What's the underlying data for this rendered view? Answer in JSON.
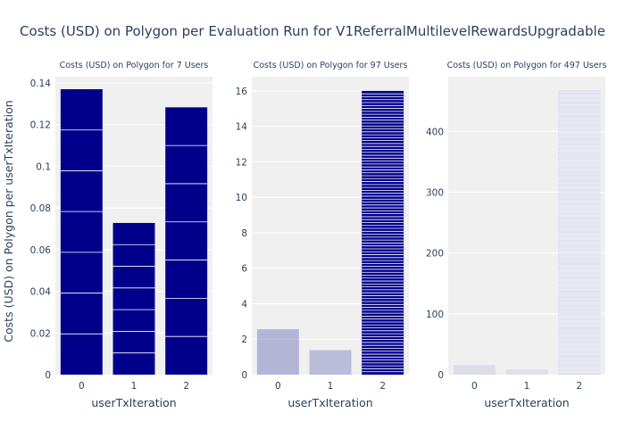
{
  "title": "Costs (USD) on Polygon per Evaluation Run for V1ReferralMultilevelRewardsUpgradable",
  "ylabel": "Costs (USD) on Polygon per userTxIteration",
  "chart_data": [
    {
      "type": "bar",
      "title": "Costs (USD) on Polygon for 7 Users",
      "xlabel": "userTxIteration",
      "categories": [
        "0",
        "1",
        "2"
      ],
      "values": [
        0.137,
        0.0728,
        0.1283
      ],
      "segments": 7,
      "color": "#00008b",
      "ylim": [
        0,
        0.143
      ],
      "yticks": [
        0,
        0.02,
        0.04,
        0.06,
        0.08,
        0.1,
        0.12,
        0.14
      ],
      "ytick_labels": [
        "0",
        "0.02",
        "0.04",
        "0.06",
        "0.08",
        "0.1",
        "0.12",
        "0.14"
      ]
    },
    {
      "type": "bar",
      "title": "Costs (USD) on Polygon for 97 Users",
      "xlabel": "userTxIteration",
      "categories": [
        "0",
        "1",
        "2"
      ],
      "values": [
        2.56,
        1.38,
        16.0
      ],
      "segments": 97,
      "color": "#00008b",
      "opacity": [
        0.25,
        0.22,
        1.0
      ],
      "ylim": [
        0,
        16.8
      ],
      "yticks": [
        0,
        2,
        4,
        6,
        8,
        10,
        12,
        14,
        16
      ],
      "ytick_labels": [
        "0",
        "2",
        "4",
        "6",
        "8",
        "10",
        "12",
        "14",
        "16"
      ]
    },
    {
      "type": "bar",
      "title": "Costs (USD) on Polygon for 497 Users",
      "xlabel": "userTxIteration",
      "categories": [
        "0",
        "1",
        "2"
      ],
      "values": [
        16.0,
        8.5,
        467.0
      ],
      "segments": 497,
      "color": "#00008b",
      "opacity": [
        0.08,
        0.07,
        0.3
      ],
      "ylim": [
        0,
        490
      ],
      "yticks": [
        0,
        100,
        200,
        300,
        400
      ],
      "ytick_labels": [
        "0",
        "100",
        "200",
        "300",
        "400"
      ]
    }
  ]
}
